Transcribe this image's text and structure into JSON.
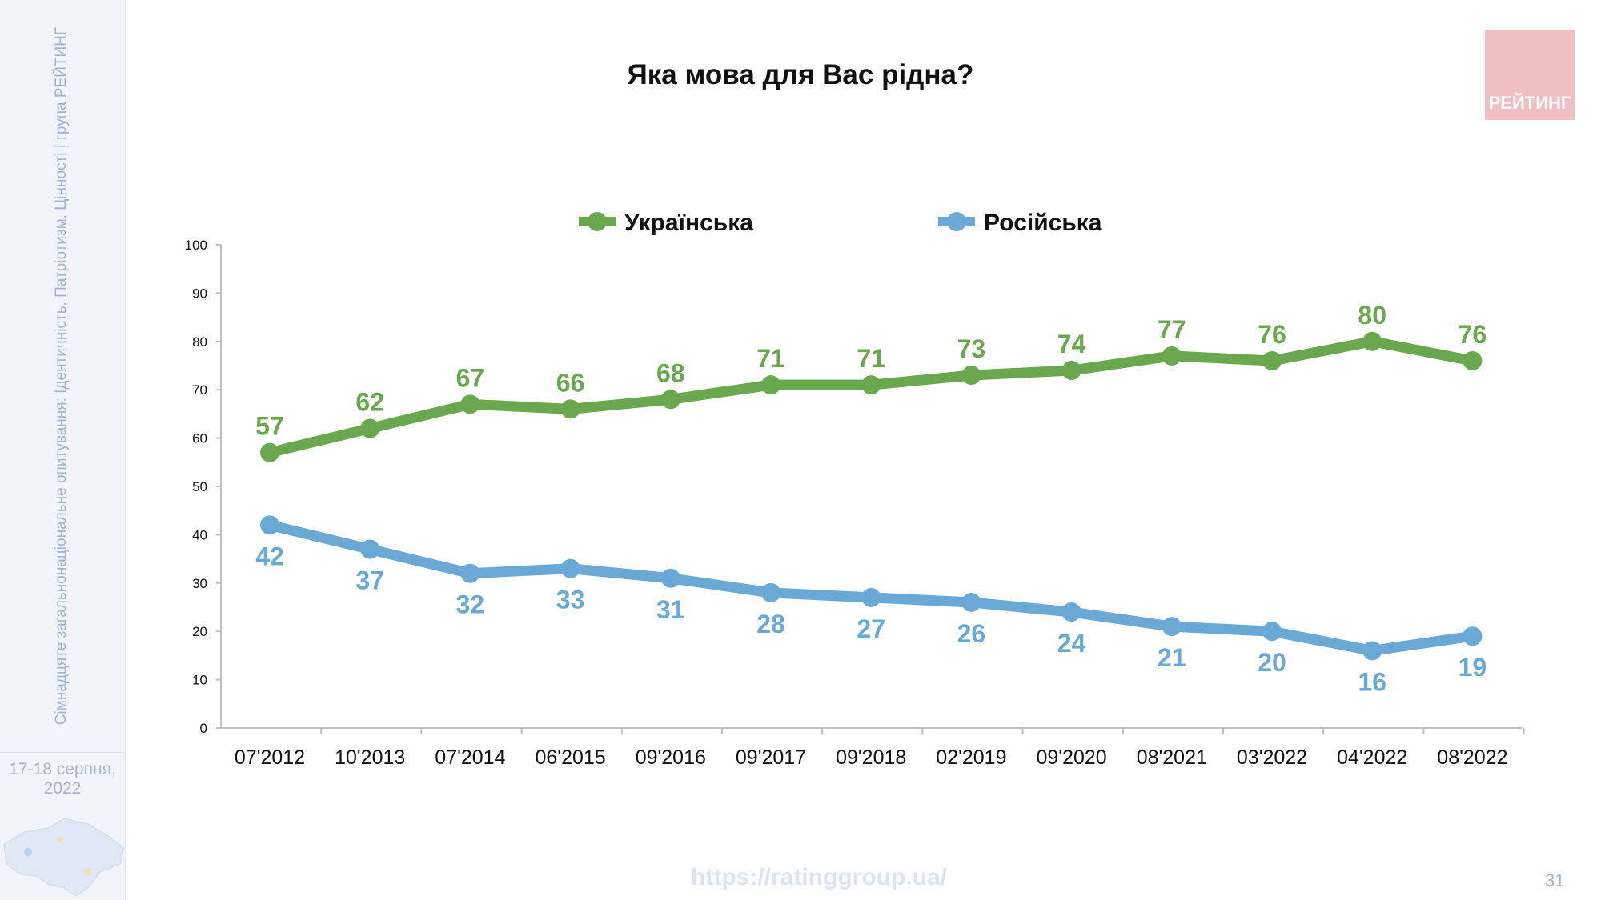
{
  "sidebar": {
    "survey": "Сімнадцяте загальнонаціональне опитування: Ідентичність. Патріотизм. Цінності | група РЕЙТИНГ",
    "date_line1": "17-18 серпня,",
    "date_line2": "2022"
  },
  "logo": {
    "text": "РЕЙТИНГ",
    "color": "#f1bfc1"
  },
  "footer": {
    "url": "https://ratinggroup.ua/",
    "page": "31"
  },
  "chart_data": {
    "type": "line",
    "title": "Яка мова для Вас рідна?",
    "categories": [
      "07'2012",
      "10'2013",
      "07'2014",
      "06'2015",
      "09'2016",
      "09'2017",
      "09'2018",
      "02'2019",
      "09'2020",
      "08'2021",
      "03'2022",
      "04'2022",
      "08'2022"
    ],
    "series": [
      {
        "name": "Українська",
        "color": "#6aa84f",
        "values": [
          57,
          62,
          67,
          66,
          68,
          71,
          71,
          73,
          74,
          77,
          76,
          80,
          76
        ]
      },
      {
        "name": "Російська",
        "color": "#6aa9d6",
        "values": [
          42,
          37,
          32,
          33,
          31,
          28,
          27,
          26,
          24,
          21,
          20,
          16,
          19
        ]
      }
    ],
    "yticks": [
      0,
      10,
      20,
      30,
      40,
      50,
      60,
      70,
      80,
      90,
      100
    ],
    "ylim": [
      0,
      100
    ],
    "grid": false,
    "legend": "top"
  }
}
